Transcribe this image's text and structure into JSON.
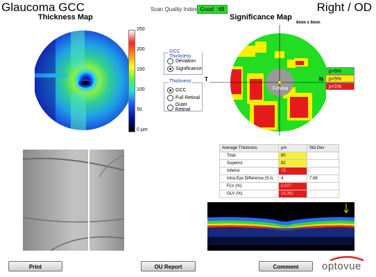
{
  "header": {
    "app_title": "Glaucoma GCC",
    "eye": "Right / OD",
    "scan_quality_label": "Scan Quality Index",
    "scan_quality_value": "Good : 68"
  },
  "thickness_map": {
    "title": "Thickness Map",
    "scale_ticks": [
      "250",
      "200",
      "150",
      "100",
      "50",
      "0 µm"
    ]
  },
  "significance_map": {
    "title": "Significance Map",
    "dimensions": "6mm x 6mm",
    "label_t": "T",
    "label_n": "N",
    "fovea_label": "Fovea",
    "legend": [
      {
        "label": "p>5%",
        "color": "#22dd22"
      },
      {
        "label": "p<5%",
        "color": "#ffee00"
      },
      {
        "label": "p<1%",
        "color": "#e41b1b"
      }
    ]
  },
  "gcc_thickness_panel": {
    "title": "GCC Thickness",
    "options": [
      "Deviation",
      "Significance"
    ],
    "selected": "Significance"
  },
  "thickness_panel": {
    "title": "Thickness",
    "options": [
      "GCC",
      "Full Retinal",
      "Outer Retinal"
    ],
    "selected": "GCC"
  },
  "stats_table": {
    "headers": [
      "Average Thickness",
      "µm",
      "Std Dev"
    ],
    "rows": [
      {
        "label": "Total",
        "value": "80",
        "std": "",
        "color": "#f5ef3a"
      },
      {
        "label": "Superior",
        "value": "82",
        "std": "",
        "color": "#f5ef3a"
      },
      {
        "label": "Inferior",
        "value": "78",
        "std": "",
        "color": "#e41b1b"
      },
      {
        "label": "Intra Eye Difference (S-I)",
        "value": "4",
        "std": "7.68",
        "color": ""
      },
      {
        "label": "FLV (%)",
        "value": "3.027",
        "std": "",
        "color": "#e41b1b"
      },
      {
        "label": "GLV (%)",
        "value": "16.361",
        "std": "",
        "color": "#e41b1b"
      }
    ]
  },
  "buttons": {
    "print": "Print",
    "ou_report": "OU Report",
    "comment": "Comment"
  },
  "brand": {
    "logo": "optovue"
  },
  "colors": {
    "sig_green": "#22dd22",
    "sig_yellow": "#ffee00",
    "sig_red": "#e41b1b",
    "quality_green": "#2fd62f"
  }
}
